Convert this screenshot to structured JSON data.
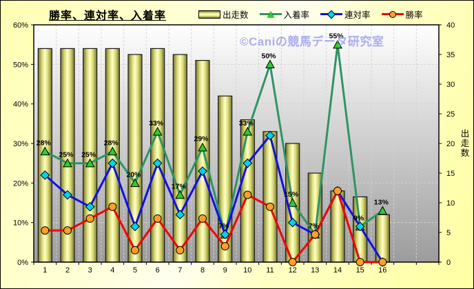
{
  "window": {
    "watermark": "©Caniの競馬データ研究室"
  },
  "title": "勝率、連対率、入着率",
  "legend": [
    {
      "label": "出走数",
      "swatch": "bar"
    },
    {
      "label": "入着率",
      "swatch": "triangle-line",
      "line_color": "#2d9464",
      "marker_color": "#2ecc2e"
    },
    {
      "label": "連対率",
      "swatch": "diamond-line",
      "line_color": "#0f0fe8",
      "marker_color": "#00d2f0"
    },
    {
      "label": "勝率",
      "swatch": "circle-line",
      "line_color": "#f20000",
      "marker_color": "#ffa028"
    }
  ],
  "chart_data": {
    "type": "combo-bar-line",
    "title": "勝率、連対率、入着率",
    "categories": [
      "1",
      "2",
      "3",
      "4",
      "5",
      "6",
      "7",
      "8",
      "9",
      "10",
      "11",
      "12",
      "13",
      "14",
      "15",
      "16"
    ],
    "x_slots": 18,
    "grid": true,
    "legend_position": "top",
    "left_axis": {
      "min": 0,
      "max": 60,
      "step": 10,
      "tick_labels": [
        "0%",
        "10%",
        "20%",
        "30%",
        "40%",
        "50%",
        "60%"
      ]
    },
    "right_axis": {
      "min": 0,
      "max": 40,
      "step": 5,
      "tick_labels": [
        "0",
        "5",
        "10",
        "15",
        "20",
        "25",
        "30",
        "35",
        "40"
      ],
      "title": "出走数"
    },
    "series": [
      {
        "name": "出走数",
        "type": "bar",
        "axis": "right",
        "values": [
          36,
          36,
          36,
          36,
          35,
          36,
          35,
          34,
          28,
          24,
          22,
          20,
          15,
          12,
          11,
          8
        ],
        "border_color": "#1a1a1a"
      },
      {
        "name": "入着率",
        "type": "line",
        "axis": "left",
        "marker": "triangle",
        "line_color": "#2d9464",
        "marker_color": "#2ecc2e",
        "values": [
          28,
          25,
          25,
          28,
          20,
          33,
          17,
          29,
          7,
          33,
          50,
          15,
          7,
          55,
          9,
          13
        ],
        "data_labels": [
          "28%",
          "25%",
          "25%",
          "28%",
          "20%",
          "33%",
          "17%",
          "29%",
          "7%",
          "33%",
          "50%",
          "15%",
          "7%",
          "55%",
          "9%",
          "13%"
        ]
      },
      {
        "name": "連対率",
        "type": "line",
        "axis": "left",
        "marker": "diamond",
        "line_color": "#0f0fe8",
        "marker_color": "#00d2f0",
        "values": [
          22,
          17,
          14,
          25,
          9,
          25,
          12,
          23,
          7,
          25,
          32,
          10,
          7,
          18,
          9,
          0
        ]
      },
      {
        "name": "勝率",
        "type": "line",
        "axis": "left",
        "marker": "circle",
        "line_color": "#f20000",
        "marker_color": "#ffa028",
        "values": [
          8,
          8,
          11,
          14,
          3,
          11,
          3,
          11,
          4,
          17,
          14,
          0,
          7,
          18,
          0,
          0
        ]
      }
    ]
  },
  "colors": {
    "outer_bg": "#ffffb4",
    "plot_bg_top": "#ffffff",
    "plot_bg_bottom": "#9c9c9c",
    "bar_edge": "#73732f",
    "bar_center": "#ffffc4",
    "gridline": "#d2d2d2",
    "watermark": "#9b9bec",
    "axis_text": "#000000"
  }
}
